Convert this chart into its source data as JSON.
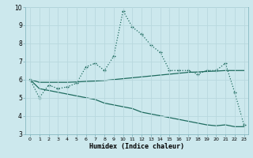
{
  "xlabel": "Humidex (Indice chaleur)",
  "bg_color": "#cce8ed",
  "grid_color": "#b8d8de",
  "line_color": "#1e6b5e",
  "xlim": [
    -0.5,
    23.5
  ],
  "ylim": [
    3,
    10
  ],
  "x": [
    0,
    1,
    2,
    3,
    4,
    5,
    6,
    7,
    8,
    9,
    10,
    11,
    12,
    13,
    14,
    15,
    16,
    17,
    18,
    19,
    20,
    21,
    22,
    23
  ],
  "line1": [
    6.0,
    5.0,
    5.7,
    5.5,
    5.6,
    5.8,
    6.7,
    6.9,
    6.5,
    7.3,
    9.8,
    8.9,
    8.5,
    7.9,
    7.5,
    6.5,
    6.5,
    6.5,
    6.3,
    6.5,
    6.5,
    6.9,
    5.3,
    3.5
  ],
  "line2": [
    6.0,
    5.85,
    5.85,
    5.85,
    5.85,
    5.87,
    5.9,
    5.92,
    5.95,
    6.0,
    6.05,
    6.1,
    6.15,
    6.2,
    6.25,
    6.3,
    6.35,
    6.4,
    6.42,
    6.45,
    6.47,
    6.5,
    6.5,
    6.5
  ],
  "line3": [
    6.0,
    5.5,
    5.4,
    5.3,
    5.2,
    5.1,
    5.0,
    4.9,
    4.7,
    4.6,
    4.5,
    4.4,
    4.2,
    4.1,
    4.0,
    3.9,
    3.8,
    3.7,
    3.6,
    3.5,
    3.45,
    3.5,
    3.4,
    3.4
  ]
}
